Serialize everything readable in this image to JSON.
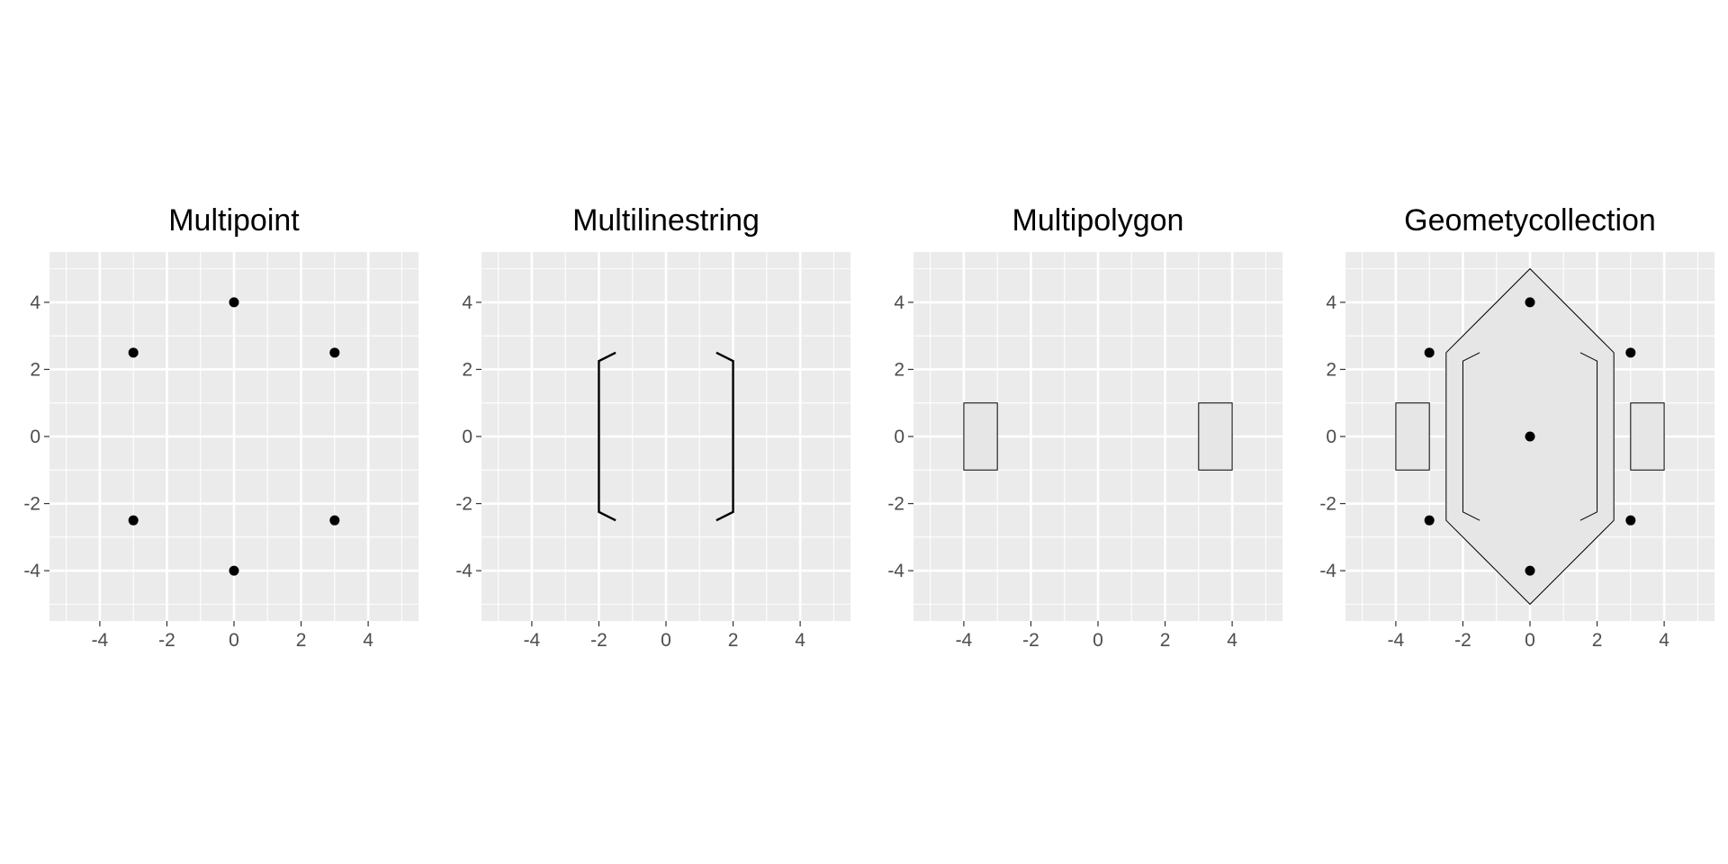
{
  "colors": {
    "panel_background": "#EBEBEB",
    "grid_line": "#FFFFFF",
    "tick_mark": "#333333",
    "tick_label": "#4D4D4D",
    "polygon_fill": "#E6E6E6",
    "geometry_stroke": "#000000",
    "point": "#000000"
  },
  "chart_data": [
    {
      "type": "scatter",
      "title": "Multipoint",
      "xlim": [
        -5.5,
        5.5
      ],
      "ylim": [
        -5.5,
        5.5
      ],
      "x_ticks": [
        -4,
        -2,
        0,
        2,
        4
      ],
      "y_ticks": [
        -4,
        -2,
        0,
        2,
        4
      ],
      "grid": true,
      "geometries": [
        {
          "kind": "points",
          "coords": [
            [
              0,
              4
            ],
            [
              -3,
              2.5
            ],
            [
              3,
              2.5
            ],
            [
              -3,
              -2.5
            ],
            [
              3,
              -2.5
            ],
            [
              0,
              -4
            ]
          ]
        }
      ]
    },
    {
      "type": "line",
      "title": "Multilinestring",
      "xlim": [
        -5.5,
        5.5
      ],
      "ylim": [
        -5.5,
        5.5
      ],
      "x_ticks": [
        -4,
        -2,
        0,
        2,
        4
      ],
      "y_ticks": [
        -4,
        -2,
        0,
        2,
        4
      ],
      "grid": true,
      "geometries": [
        {
          "kind": "line",
          "coords": [
            [
              -1.5,
              2.5
            ],
            [
              -2,
              2.25
            ],
            [
              -2,
              -2.25
            ],
            [
              -1.5,
              -2.5
            ]
          ]
        },
        {
          "kind": "line",
          "coords": [
            [
              1.5,
              2.5
            ],
            [
              2,
              2.25
            ],
            [
              2,
              -2.25
            ],
            [
              1.5,
              -2.5
            ]
          ]
        }
      ]
    },
    {
      "type": "area",
      "title": "Multipolygon",
      "xlim": [
        -5.5,
        5.5
      ],
      "ylim": [
        -5.5,
        5.5
      ],
      "x_ticks": [
        -4,
        -2,
        0,
        2,
        4
      ],
      "y_ticks": [
        -4,
        -2,
        0,
        2,
        4
      ],
      "grid": true,
      "geometries": [
        {
          "kind": "polygon",
          "coords": [
            [
              -4,
              1
            ],
            [
              -3,
              1
            ],
            [
              -3,
              -1
            ],
            [
              -4,
              -1
            ]
          ]
        },
        {
          "kind": "polygon",
          "coords": [
            [
              3,
              1
            ],
            [
              4,
              1
            ],
            [
              4,
              -1
            ],
            [
              3,
              -1
            ]
          ]
        }
      ]
    },
    {
      "type": "area",
      "title": "Geometycollection",
      "xlim": [
        -5.5,
        5.5
      ],
      "ylim": [
        -5.5,
        5.5
      ],
      "x_ticks": [
        -4,
        -2,
        0,
        2,
        4
      ],
      "y_ticks": [
        -4,
        -2,
        0,
        2,
        4
      ],
      "grid": true,
      "geometries": [
        {
          "kind": "polygon",
          "coords": [
            [
              0,
              5
            ],
            [
              2.5,
              2.5
            ],
            [
              2.5,
              -2.5
            ],
            [
              0,
              -5
            ],
            [
              -2.5,
              -2.5
            ],
            [
              -2.5,
              2.5
            ]
          ]
        },
        {
          "kind": "polygon",
          "coords": [
            [
              -4,
              1
            ],
            [
              -3,
              1
            ],
            [
              -3,
              -1
            ],
            [
              -4,
              -1
            ]
          ]
        },
        {
          "kind": "polygon",
          "coords": [
            [
              3,
              1
            ],
            [
              4,
              1
            ],
            [
              4,
              -1
            ],
            [
              3,
              -1
            ]
          ]
        },
        {
          "kind": "thin-line",
          "coords": [
            [
              -1.5,
              2.5
            ],
            [
              -2,
              2.25
            ],
            [
              -2,
              -2.25
            ],
            [
              -1.5,
              -2.5
            ]
          ]
        },
        {
          "kind": "thin-line",
          "coords": [
            [
              1.5,
              2.5
            ],
            [
              2,
              2.25
            ],
            [
              2,
              -2.25
            ],
            [
              1.5,
              -2.5
            ]
          ]
        },
        {
          "kind": "points",
          "coords": [
            [
              0,
              4
            ],
            [
              -3,
              2.5
            ],
            [
              3,
              2.5
            ],
            [
              0,
              0
            ],
            [
              -3,
              -2.5
            ],
            [
              3,
              -2.5
            ],
            [
              0,
              -4
            ]
          ]
        }
      ]
    }
  ]
}
